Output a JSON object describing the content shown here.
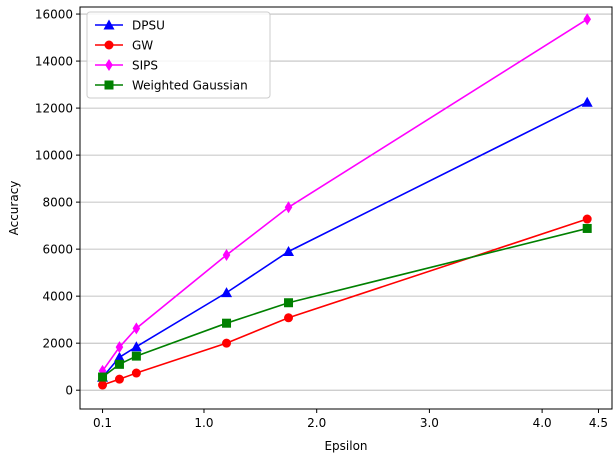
{
  "chart_data": {
    "type": "line",
    "title": "",
    "xlabel": "Epsilon",
    "ylabel": "Accuracy",
    "xlim": [
      -0.1,
      4.62
    ],
    "ylim": [
      -800,
      16300
    ],
    "grid": "horizontal",
    "legend_position": "top-left",
    "x_ticks": [
      {
        "value": 0.1,
        "label": "0.1"
      },
      {
        "value": 1.0,
        "label": "1.0"
      },
      {
        "value": 2.0,
        "label": "2.0"
      },
      {
        "value": 3.0,
        "label": "3.0"
      },
      {
        "value": 4.0,
        "label": "4.0"
      },
      {
        "value": 4.5,
        "label": "4.5"
      }
    ],
    "y_ticks": [
      {
        "value": 0,
        "label": "0"
      },
      {
        "value": 2000,
        "label": "2000"
      },
      {
        "value": 4000,
        "label": "4000"
      },
      {
        "value": 6000,
        "label": "6000"
      },
      {
        "value": 8000,
        "label": "8000"
      },
      {
        "value": 10000,
        "label": "10000"
      },
      {
        "value": 12000,
        "label": "12000"
      },
      {
        "value": 14000,
        "label": "14000"
      },
      {
        "value": 16000,
        "label": "16000"
      }
    ],
    "x": [
      0.1,
      0.25,
      0.4,
      1.2,
      1.75,
      4.4
    ],
    "series": [
      {
        "name": "DPSU",
        "color": "#0000ff",
        "marker": "triangle",
        "values": [
          550,
          1400,
          1850,
          4150,
          5900,
          12250
        ]
      },
      {
        "name": "GW",
        "color": "#ff0000",
        "marker": "circle",
        "values": [
          220,
          470,
          730,
          2000,
          3080,
          7280
        ]
      },
      {
        "name": "SIPS",
        "color": "#ff00ff",
        "marker": "diamond",
        "values": [
          820,
          1830,
          2630,
          5750,
          7780,
          15780
        ]
      },
      {
        "name": "Weighted Gaussian",
        "color": "#008000",
        "marker": "square",
        "values": [
          560,
          1100,
          1450,
          2850,
          3720,
          6880
        ]
      }
    ]
  }
}
